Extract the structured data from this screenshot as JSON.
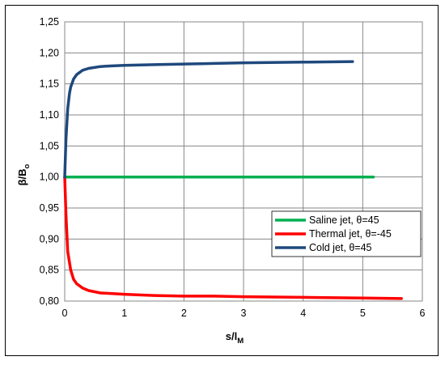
{
  "chart_data": {
    "type": "line",
    "xlabel": "s/l",
    "xlabel_sub": "M",
    "ylabel": "β/B",
    "ylabel_sub": "o",
    "xlim": [
      0,
      6
    ],
    "ylim": [
      0.8,
      1.25
    ],
    "xticks": [
      "0",
      "1",
      "2",
      "3",
      "4",
      "5",
      "6"
    ],
    "yticks": [
      "0,80",
      "0,85",
      "0,90",
      "0,95",
      "1,00",
      "1,05",
      "1,10",
      "1,15",
      "1,20",
      "1,25"
    ],
    "grid": true,
    "legend_position": "right",
    "series": [
      {
        "name": "Saline jet, θ=45",
        "color": "#00b050",
        "x": [
          0,
          1,
          2,
          3,
          4,
          5.18
        ],
        "y": [
          1.0,
          1.0,
          1.0,
          1.0,
          1.0,
          1.0
        ]
      },
      {
        "name": "Thermal jet, θ=-45",
        "color": "#ff0000",
        "x": [
          0,
          0.02,
          0.05,
          0.1,
          0.15,
          0.2,
          0.3,
          0.4,
          0.6,
          0.8,
          1.0,
          1.5,
          2.0,
          2.5,
          3.0,
          4.0,
          5.0,
          5.65
        ],
        "y": [
          1.0,
          0.94,
          0.88,
          0.85,
          0.835,
          0.828,
          0.821,
          0.817,
          0.813,
          0.812,
          0.811,
          0.809,
          0.808,
          0.808,
          0.807,
          0.806,
          0.805,
          0.804
        ]
      },
      {
        "name": "Cold jet, θ=45",
        "color": "#1f497d",
        "x": [
          0,
          0.02,
          0.05,
          0.08,
          0.1,
          0.15,
          0.2,
          0.3,
          0.4,
          0.6,
          0.8,
          1.0,
          1.5,
          2.0,
          2.5,
          3.0,
          4.0,
          4.83
        ],
        "y": [
          1.0,
          1.06,
          1.11,
          1.135,
          1.145,
          1.158,
          1.165,
          1.172,
          1.175,
          1.178,
          1.179,
          1.18,
          1.181,
          1.182,
          1.183,
          1.184,
          1.185,
          1.186
        ]
      }
    ]
  }
}
